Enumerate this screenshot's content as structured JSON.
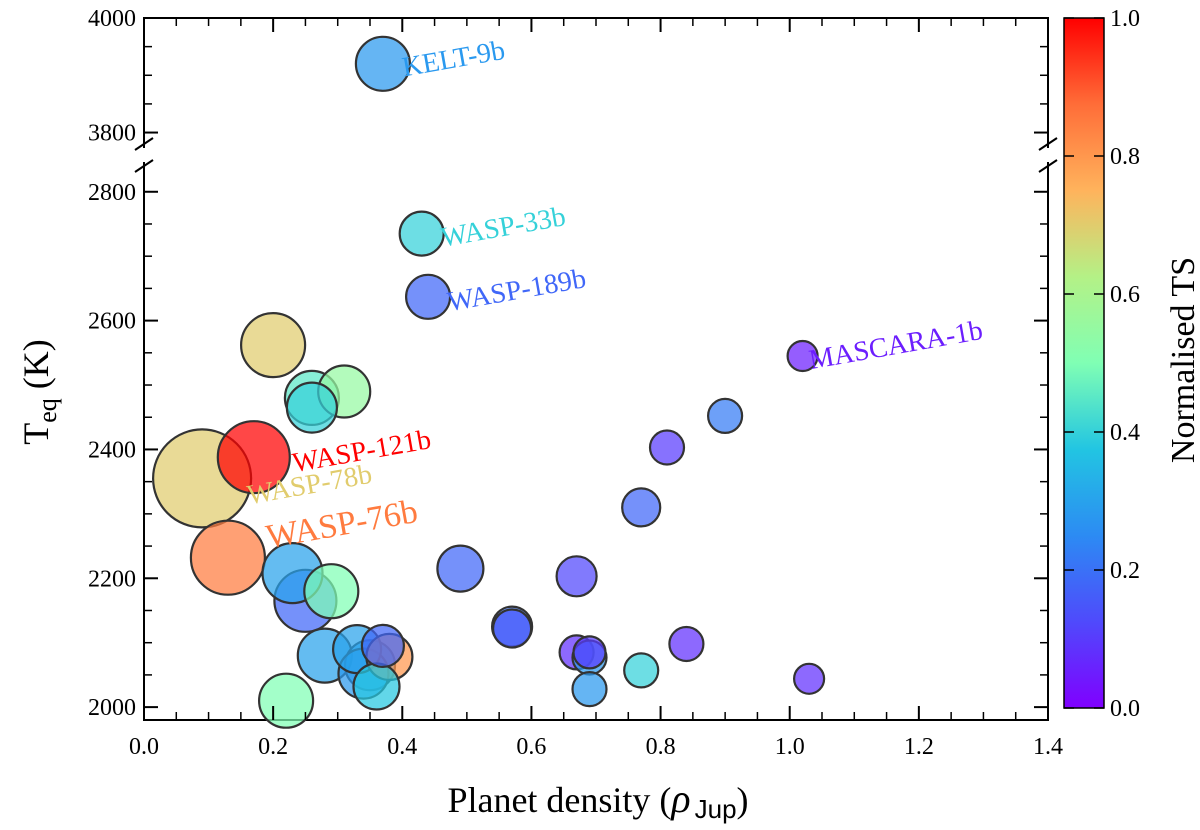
{
  "chart_data": {
    "type": "scatter",
    "xlabel": "Planet density (",
    "xlabel_symbol": "ρ",
    "xlabel_sub": "Jup",
    "xlabel_close": ")",
    "ylabel_main": "T",
    "ylabel_sub": "eq",
    "ylabel_unit": " (K)",
    "xlim": [
      0.0,
      1.4
    ],
    "ylim_lower": [
      1980,
      2840
    ],
    "ylim_upper": [
      3780,
      4000
    ],
    "x_ticks": [
      0.0,
      0.2,
      0.4,
      0.6,
      0.8,
      1.0,
      1.2,
      1.4
    ],
    "x_tick_labels": [
      "0.0",
      "0.2",
      "0.4",
      "0.6",
      "0.8",
      "1.0",
      "1.2",
      "1.4"
    ],
    "y_ticks_lower": [
      2000,
      2200,
      2400,
      2600,
      2800
    ],
    "y_tick_labels_lower": [
      "2000",
      "2200",
      "2400",
      "2600",
      "2800"
    ],
    "y_ticks_upper": [
      3800,
      4000
    ],
    "y_tick_labels_upper": [
      "3800",
      "4000"
    ],
    "colorbar": {
      "label": "Normalised TS",
      "range": [
        0.0,
        1.0
      ],
      "ticks": [
        0.0,
        0.2,
        0.4,
        0.6,
        0.8,
        1.0
      ],
      "tick_labels": [
        "0.0",
        "0.2",
        "0.4",
        "0.6",
        "0.8",
        "1.0"
      ],
      "colormap": "rainbow"
    },
    "size_note": "marker size scales with a planet parameter",
    "points": [
      {
        "x": 0.37,
        "y": 3920,
        "c": 0.28,
        "s": 27
      },
      {
        "x": 0.43,
        "y": 2735,
        "c": 0.4,
        "s": 22
      },
      {
        "x": 0.44,
        "y": 2637,
        "c": 0.18,
        "s": 22
      },
      {
        "x": 1.02,
        "y": 2545,
        "c": 0.05,
        "s": 15
      },
      {
        "x": 0.2,
        "y": 2562,
        "c": 0.7,
        "s": 32
      },
      {
        "x": 0.31,
        "y": 2490,
        "c": 0.55,
        "s": 26
      },
      {
        "x": 0.26,
        "y": 2480,
        "c": 0.45,
        "s": 27
      },
      {
        "x": 0.26,
        "y": 2465,
        "c": 0.4,
        "s": 25
      },
      {
        "x": 0.9,
        "y": 2452,
        "c": 0.22,
        "s": 17
      },
      {
        "x": 0.17,
        "y": 2388,
        "c": 1.0,
        "s": 36
      },
      {
        "x": 0.09,
        "y": 2355,
        "c": 0.7,
        "s": 49
      },
      {
        "x": 0.81,
        "y": 2403,
        "c": 0.1,
        "s": 17
      },
      {
        "x": 0.77,
        "y": 2310,
        "c": 0.18,
        "s": 19
      },
      {
        "x": 0.13,
        "y": 2232,
        "c": 0.85,
        "s": 37
      },
      {
        "x": 0.49,
        "y": 2215,
        "c": 0.18,
        "s": 23
      },
      {
        "x": 0.67,
        "y": 2203,
        "c": 0.12,
        "s": 20
      },
      {
        "x": 0.23,
        "y": 2208,
        "c": 0.3,
        "s": 30
      },
      {
        "x": 0.29,
        "y": 2180,
        "c": 0.5,
        "s": 27
      },
      {
        "x": 0.25,
        "y": 2165,
        "c": 0.18,
        "s": 31
      },
      {
        "x": 0.57,
        "y": 2125,
        "c": 0.2,
        "s": 20
      },
      {
        "x": 0.57,
        "y": 2122,
        "c": 0.15,
        "s": 19
      },
      {
        "x": 0.67,
        "y": 2085,
        "c": 0.08,
        "s": 17
      },
      {
        "x": 0.69,
        "y": 2085,
        "c": 0.1,
        "s": 16
      },
      {
        "x": 0.69,
        "y": 2077,
        "c": 0.28,
        "s": 17
      },
      {
        "x": 0.84,
        "y": 2098,
        "c": 0.08,
        "s": 17
      },
      {
        "x": 0.28,
        "y": 2080,
        "c": 0.3,
        "s": 27
      },
      {
        "x": 0.33,
        "y": 2090,
        "c": 0.3,
        "s": 24
      },
      {
        "x": 0.37,
        "y": 2095,
        "c": 0.18,
        "s": 21
      },
      {
        "x": 0.38,
        "y": 2078,
        "c": 0.8,
        "s": 23
      },
      {
        "x": 0.35,
        "y": 2065,
        "c": 0.3,
        "s": 25
      },
      {
        "x": 0.34,
        "y": 2052,
        "c": 0.28,
        "s": 25
      },
      {
        "x": 0.36,
        "y": 2032,
        "c": 0.38,
        "s": 23
      },
      {
        "x": 0.77,
        "y": 2057,
        "c": 0.4,
        "s": 17
      },
      {
        "x": 0.69,
        "y": 2028,
        "c": 0.28,
        "s": 17
      },
      {
        "x": 1.03,
        "y": 2044,
        "c": 0.08,
        "s": 15
      },
      {
        "x": 0.22,
        "y": 2010,
        "c": 0.5,
        "s": 27
      }
    ],
    "annotations": [
      {
        "text": "KELT-9b",
        "x": 0.4,
        "y": 3915,
        "c": 0.28,
        "size": 28
      },
      {
        "text": "WASP-33b",
        "x": 0.46,
        "y": 2730,
        "c": 0.4,
        "size": 28
      },
      {
        "text": "WASP-189b",
        "x": 0.47,
        "y": 2630,
        "c": 0.18,
        "size": 28
      },
      {
        "text": "MASCARA-1b",
        "x": 1.03,
        "y": 2540,
        "c": 0.05,
        "size": 28
      },
      {
        "text": "WASP-121b",
        "x": 0.23,
        "y": 2380,
        "c": 1.0,
        "size": 28
      },
      {
        "text": "WASP-78b",
        "x": 0.16,
        "y": 2330,
        "c": 0.7,
        "size": 28
      },
      {
        "text": "WASP-76b",
        "x": 0.19,
        "y": 2262,
        "c": 0.85,
        "size": 34
      }
    ]
  }
}
